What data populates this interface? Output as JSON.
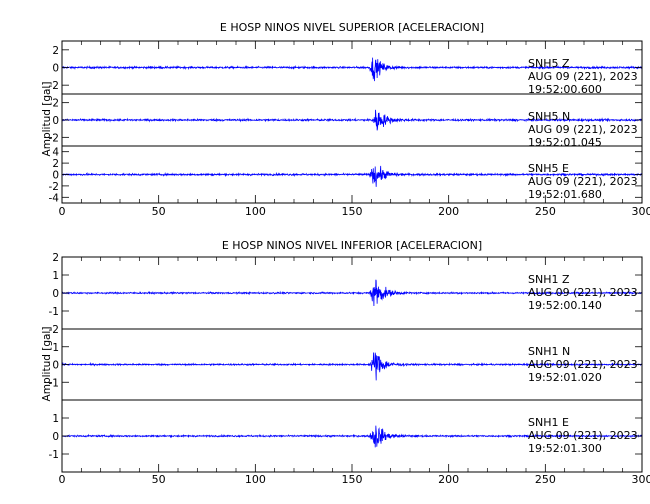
{
  "colors": {
    "trace": "#0000ff",
    "axes": "#000000",
    "background": "#ffffff"
  },
  "chart_data": [
    {
      "type": "line",
      "title": "E HOSP NINOS NIVEL SUPERIOR [ACELERACION]",
      "ylabel": "Amplitud [gal]",
      "xlim": [
        0,
        300
      ],
      "x_ticks": [
        0,
        50,
        100,
        150,
        200,
        250,
        300
      ],
      "x_tick_labels": [
        "0",
        "50",
        "100",
        "150",
        "200",
        "250",
        "300"
      ],
      "grid": false,
      "panels": [
        {
          "station": "SNH5",
          "component": "Z",
          "label_lines": [
            "SNH5   Z",
            "AUG 09 (221), 2023",
            "19:52:00.600"
          ],
          "ylim": [
            -3,
            3
          ],
          "y_ticks": [
            -2,
            0,
            2
          ],
          "y_tick_labels": [
            "-2",
            "0",
            "2"
          ],
          "event_start_s": 159,
          "peak_time_s": 161,
          "peak_amplitude": 2.8,
          "noise_level": 0.1,
          "decay_s": 4.0
        },
        {
          "station": "SNH5",
          "component": "N",
          "label_lines": [
            "SNH5   N",
            "AUG 09 (221), 2023",
            "19:52:01.045"
          ],
          "ylim": [
            -3,
            3
          ],
          "y_ticks": [
            -2,
            0,
            2
          ],
          "y_tick_labels": [
            "-2",
            "0",
            "2"
          ],
          "event_start_s": 160,
          "peak_time_s": 163,
          "peak_amplitude": 2.9,
          "noise_level": 0.1,
          "decay_s": 4.0
        },
        {
          "station": "SNH5",
          "component": "E",
          "label_lines": [
            "SNH5   E",
            "AUG 09 (221), 2023",
            "19:52:01.680"
          ],
          "ylim": [
            -5,
            5
          ],
          "y_ticks": [
            -4,
            -2,
            0,
            2,
            4
          ],
          "y_tick_labels": [
            "-4",
            "-2",
            "0",
            "2",
            "4"
          ],
          "event_start_s": 159,
          "peak_time_s": 162,
          "peak_amplitude": 4.2,
          "noise_level": 0.15,
          "decay_s": 4.0
        }
      ]
    },
    {
      "type": "line",
      "title": "E HOSP NINOS NIVEL INFERIOR [ACELERACION]",
      "ylabel": "Amplitud [gal]",
      "xlim": [
        0,
        300
      ],
      "x_ticks": [
        0,
        50,
        100,
        150,
        200,
        250,
        300
      ],
      "x_tick_labels": [
        "0",
        "50",
        "100",
        "150",
        "200",
        "250",
        "300"
      ],
      "grid": false,
      "panels": [
        {
          "station": "SNH1",
          "component": "Z",
          "label_lines": [
            "SNH1   Z",
            "AUG 09 (221), 2023",
            "19:52:00.140"
          ],
          "ylim": [
            -2,
            2
          ],
          "y_ticks": [
            -2,
            -1,
            0,
            1,
            2
          ],
          "y_tick_labels": [
            "-2",
            "-1",
            "0",
            "1",
            "2"
          ],
          "event_start_s": 159,
          "peak_time_s": 162,
          "peak_amplitude": 1.9,
          "noise_level": 0.04,
          "decay_s": 4.0
        },
        {
          "station": "SNH1",
          "component": "N",
          "label_lines": [
            "SNH1   N",
            "AUG 09 (221), 2023",
            "19:52:01.020"
          ],
          "ylim": [
            -2,
            2
          ],
          "y_ticks": [
            -1,
            0,
            1
          ],
          "y_tick_labels": [
            "-1",
            "0",
            "1"
          ],
          "event_start_s": 159,
          "peak_time_s": 162,
          "peak_amplitude": 1.8,
          "noise_level": 0.04,
          "decay_s": 4.0
        },
        {
          "station": "SNH1",
          "component": "E",
          "label_lines": [
            "SNH1   E",
            "AUG 09 (221), 2023",
            "19:52:01.300"
          ],
          "ylim": [
            -2,
            2
          ],
          "y_ticks": [
            -1,
            0,
            1
          ],
          "y_tick_labels": [
            "-1",
            "0",
            "1"
          ],
          "event_start_s": 159,
          "peak_time_s": 162,
          "peak_amplitude": 1.6,
          "noise_level": 0.04,
          "decay_s": 4.0
        }
      ]
    }
  ]
}
